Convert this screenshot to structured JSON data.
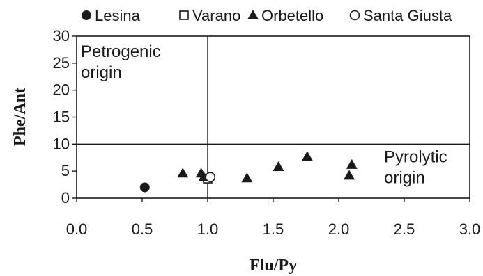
{
  "chart_data": {
    "type": "scatter",
    "xlabel": "Flu/Py",
    "ylabel": "Phe/Ant",
    "xlim": [
      0,
      3
    ],
    "ylim": [
      0,
      30
    ],
    "x_ticks": [
      0,
      0.5,
      1,
      1.5,
      2,
      2.5,
      3
    ],
    "x_tick_labels": [
      "0.0",
      "0.5",
      "1.0",
      "1.5",
      "2.0",
      "2.5",
      "3.0"
    ],
    "y_ticks": [
      0,
      5,
      10,
      15,
      20,
      25,
      30
    ],
    "y_tick_labels": [
      "0",
      "5",
      "10",
      "15",
      "20",
      "25",
      "30"
    ],
    "grid": false,
    "legend_position": "top",
    "reference_lines": [
      {
        "axis": "x",
        "value": 1
      },
      {
        "axis": "y",
        "value": 10
      }
    ],
    "annotations": [
      {
        "lines": [
          "Petrogenic",
          "origin"
        ],
        "anchor": "top-left"
      },
      {
        "lines": [
          "Pyrolytic",
          "origin"
        ],
        "anchor": "bottom-right"
      }
    ],
    "series": [
      {
        "name": "Lesina",
        "marker": "filled-circle",
        "points": [
          {
            "x": 0.52,
            "y": 2.0
          }
        ]
      },
      {
        "name": "Varano",
        "marker": "open-square",
        "points": [
          {
            "x": 1.0,
            "y": 3.6
          }
        ]
      },
      {
        "name": "Orbetello",
        "marker": "filled-triangle",
        "points": [
          {
            "x": 0.81,
            "y": 4.6
          },
          {
            "x": 0.95,
            "y": 4.6
          },
          {
            "x": 0.97,
            "y": 3.9
          },
          {
            "x": 1.3,
            "y": 3.7
          },
          {
            "x": 1.54,
            "y": 5.8
          },
          {
            "x": 1.76,
            "y": 7.7
          },
          {
            "x": 2.08,
            "y": 4.2
          },
          {
            "x": 2.1,
            "y": 6.2
          }
        ]
      },
      {
        "name": "Santa Giusta",
        "marker": "open-circle",
        "points": [
          {
            "x": 1.02,
            "y": 3.9
          }
        ]
      }
    ]
  }
}
